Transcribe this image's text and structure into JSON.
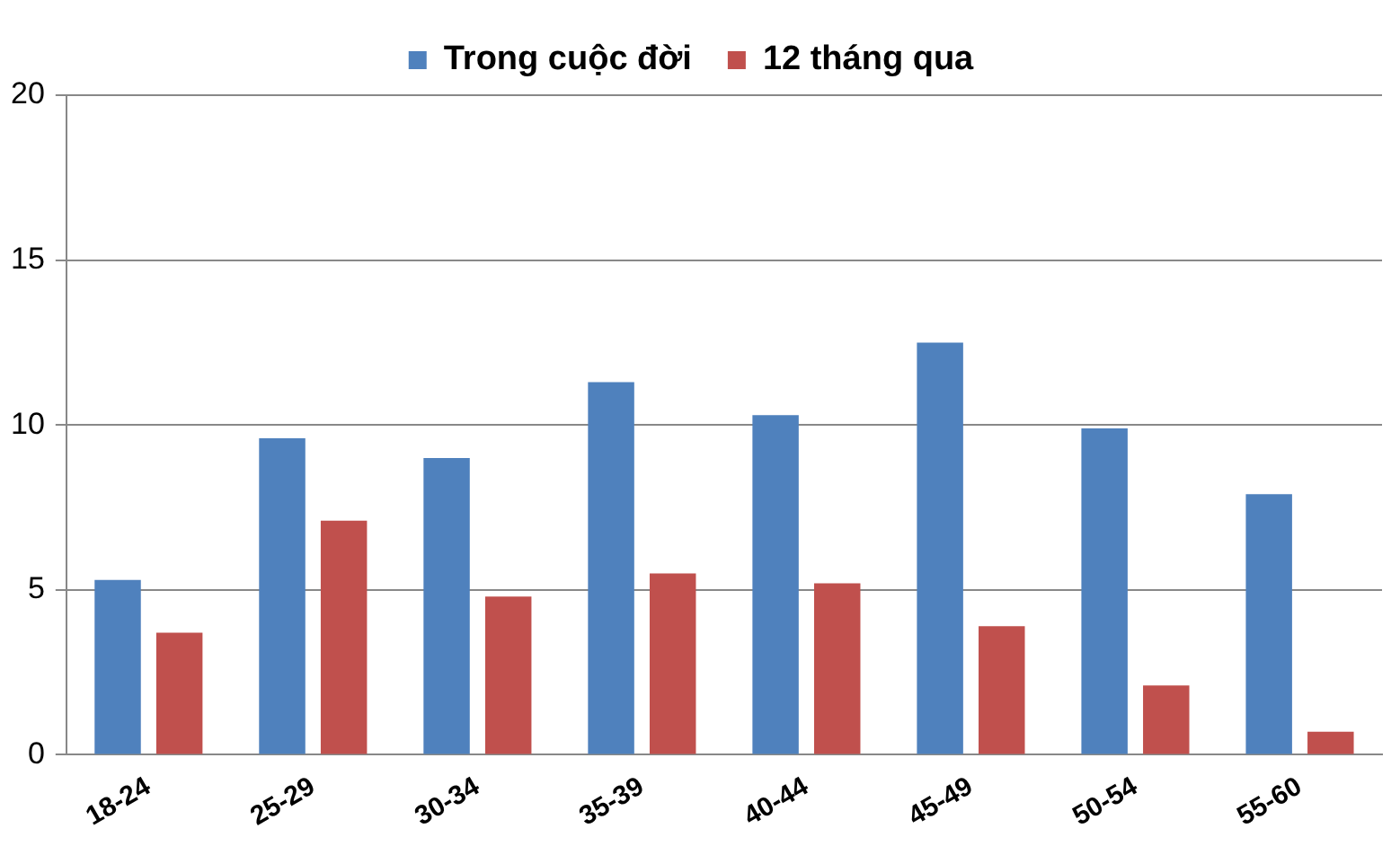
{
  "chart_data": {
    "type": "bar",
    "categories": [
      "18-24",
      "25-29",
      "30-34",
      "35-39",
      "40-44",
      "45-49",
      "50-54",
      "55-60"
    ],
    "series": [
      {
        "name": "Trong cuộc đời",
        "color": "#4f81bd",
        "values": [
          5.3,
          9.6,
          9.0,
          11.3,
          10.3,
          12.5,
          9.9,
          7.9
        ]
      },
      {
        "name": "12 tháng qua",
        "color": "#c0504d",
        "values": [
          3.7,
          7.1,
          4.8,
          5.5,
          5.2,
          3.9,
          2.1,
          0.7
        ]
      }
    ],
    "ylim": [
      0,
      20
    ],
    "yticks": [
      0,
      5,
      10,
      15,
      20
    ],
    "grid": "y",
    "legend": "top"
  }
}
